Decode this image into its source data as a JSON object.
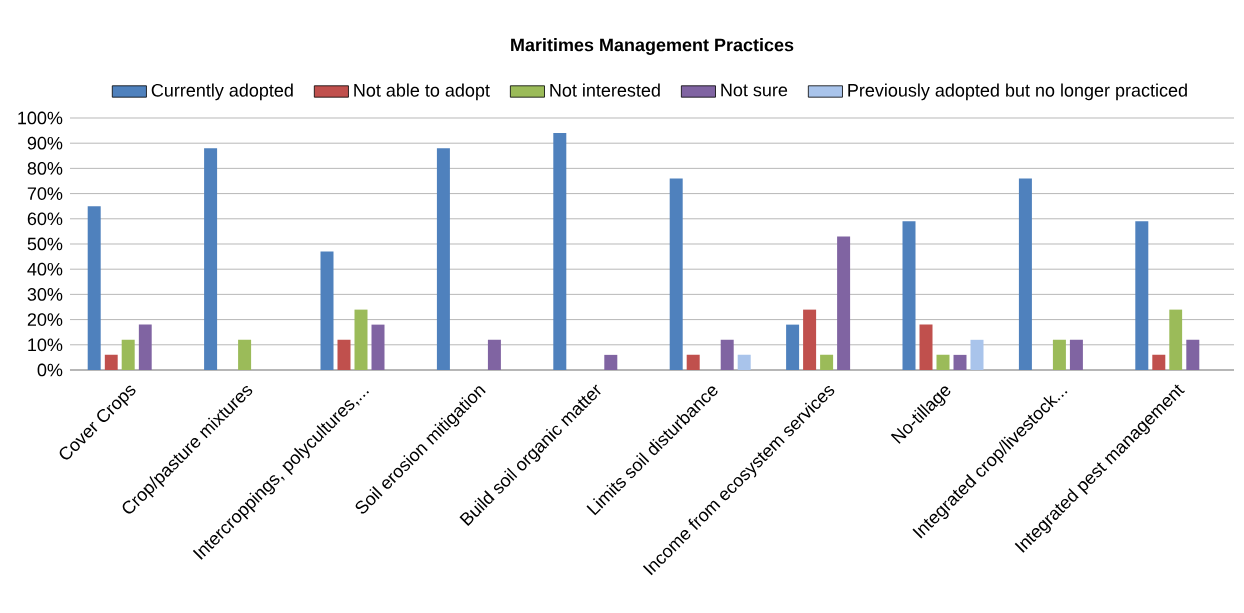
{
  "chart_data": {
    "type": "bar",
    "title": "Maritimes Management Practices",
    "categories": [
      "Cover Crops",
      "Crop/pasture mixtures",
      "Intercroppings, polycultures,...",
      "Soil erosion mitigation",
      "Build soil organic matter",
      "Limits soil disturbance",
      "Income from ecosystem services",
      "No-tillage",
      "Integrated crop/livestock...",
      "Integrated pest management"
    ],
    "series": [
      {
        "name": "Currently adopted",
        "color": "#4f81bd",
        "values": [
          65,
          88,
          47,
          88,
          94,
          76,
          18,
          59,
          76,
          59
        ]
      },
      {
        "name": "Not able to adopt",
        "color": "#c0504d",
        "values": [
          6,
          0,
          12,
          0,
          0,
          6,
          24,
          18,
          0,
          6
        ]
      },
      {
        "name": "Not interested",
        "color": "#9bbb59",
        "values": [
          12,
          12,
          24,
          0,
          0,
          0,
          6,
          6,
          12,
          24
        ]
      },
      {
        "name": "Not sure",
        "color": "#8064a2",
        "values": [
          18,
          0,
          18,
          12,
          6,
          12,
          53,
          6,
          12,
          12
        ]
      },
      {
        "name": "Previously adopted but no longer practiced",
        "color": "#a9c4eb",
        "values": [
          0,
          0,
          0,
          0,
          0,
          6,
          0,
          12,
          0,
          0
        ]
      }
    ],
    "ylim": [
      0,
      100
    ],
    "yticks": [
      {
        "value": 0,
        "label": "0%"
      },
      {
        "value": 10,
        "label": "10%"
      },
      {
        "value": 20,
        "label": "20%"
      },
      {
        "value": 30,
        "label": "30%"
      },
      {
        "value": 40,
        "label": "40%"
      },
      {
        "value": 50,
        "label": "50%"
      },
      {
        "value": 60,
        "label": "60%"
      },
      {
        "value": 70,
        "label": "70%"
      },
      {
        "value": 80,
        "label": "80%"
      },
      {
        "value": 90,
        "label": "90%"
      },
      {
        "value": 100,
        "label": "100%"
      }
    ],
    "grid": "y",
    "legend": "top"
  }
}
